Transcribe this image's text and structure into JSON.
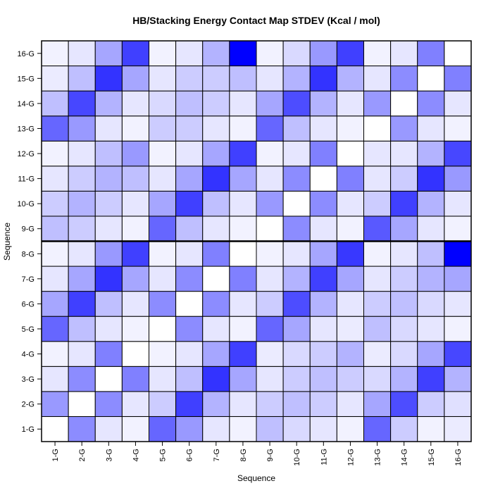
{
  "chart_data": {
    "type": "heatmap",
    "title": "HB/Stacking Energy Contact Map STDEV (Kcal / mol)",
    "xlabel": "Sequence",
    "ylabel": "Sequence",
    "x_categories": [
      "1-G",
      "2-G",
      "3-G",
      "4-G",
      "5-G",
      "6-G",
      "7-G",
      "8-G",
      "9-G",
      "10-G",
      "11-G",
      "12-G",
      "13-G",
      "14-G",
      "15-G",
      "16-G"
    ],
    "y_categories": [
      "1-G",
      "2-G",
      "3-G",
      "4-G",
      "5-G",
      "6-G",
      "7-G",
      "8-G",
      "9-G",
      "10-G",
      "11-G",
      "12-G",
      "13-G",
      "14-G",
      "15-G",
      "16-G"
    ],
    "color_low": "#ffffff",
    "color_high": "#0000ff",
    "divider_after_row": "8-G",
    "values": [
      [
        0.0,
        0.45,
        0.1,
        0.05,
        0.6,
        0.4,
        0.1,
        0.05,
        0.25,
        0.15,
        0.1,
        0.05,
        0.6,
        0.2,
        0.05,
        0.08
      ],
      [
        0.4,
        0.0,
        0.45,
        0.1,
        0.2,
        0.75,
        0.3,
        0.1,
        0.2,
        0.25,
        0.2,
        0.1,
        0.35,
        0.7,
        0.2,
        0.12
      ],
      [
        0.1,
        0.45,
        0.0,
        0.5,
        0.1,
        0.25,
        0.8,
        0.35,
        0.1,
        0.2,
        0.25,
        0.2,
        0.15,
        0.3,
        0.75,
        0.3
      ],
      [
        0.05,
        0.1,
        0.5,
        0.0,
        0.05,
        0.1,
        0.35,
        0.75,
        0.08,
        0.15,
        0.2,
        0.3,
        0.08,
        0.15,
        0.35,
        0.72
      ],
      [
        0.6,
        0.25,
        0.1,
        0.05,
        0.0,
        0.45,
        0.1,
        0.05,
        0.6,
        0.35,
        0.1,
        0.08,
        0.25,
        0.15,
        0.1,
        0.05
      ],
      [
        0.35,
        0.75,
        0.25,
        0.1,
        0.45,
        0.0,
        0.45,
        0.1,
        0.2,
        0.7,
        0.3,
        0.1,
        0.2,
        0.25,
        0.15,
        0.1
      ],
      [
        0.1,
        0.35,
        0.8,
        0.35,
        0.1,
        0.45,
        0.0,
        0.5,
        0.1,
        0.3,
        0.75,
        0.35,
        0.1,
        0.2,
        0.3,
        0.35
      ],
      [
        0.05,
        0.1,
        0.4,
        0.75,
        0.05,
        0.1,
        0.5,
        0.0,
        0.05,
        0.1,
        0.35,
        0.78,
        0.05,
        0.1,
        0.25,
        1.0
      ],
      [
        0.25,
        0.2,
        0.1,
        0.05,
        0.6,
        0.25,
        0.1,
        0.05,
        0.0,
        0.45,
        0.1,
        0.05,
        0.65,
        0.35,
        0.1,
        0.05
      ],
      [
        0.2,
        0.3,
        0.2,
        0.1,
        0.35,
        0.75,
        0.25,
        0.1,
        0.4,
        0.0,
        0.45,
        0.1,
        0.2,
        0.75,
        0.3,
        0.1
      ],
      [
        0.1,
        0.2,
        0.3,
        0.25,
        0.1,
        0.35,
        0.8,
        0.35,
        0.1,
        0.45,
        0.0,
        0.5,
        0.1,
        0.2,
        0.8,
        0.4
      ],
      [
        0.05,
        0.1,
        0.25,
        0.4,
        0.05,
        0.1,
        0.35,
        0.75,
        0.05,
        0.1,
        0.5,
        0.0,
        0.1,
        0.1,
        0.3,
        0.72
      ],
      [
        0.6,
        0.4,
        0.1,
        0.05,
        0.2,
        0.2,
        0.1,
        0.05,
        0.6,
        0.25,
        0.1,
        0.05,
        0.0,
        0.4,
        0.1,
        0.05
      ],
      [
        0.25,
        0.72,
        0.3,
        0.1,
        0.15,
        0.25,
        0.2,
        0.1,
        0.35,
        0.7,
        0.3,
        0.1,
        0.4,
        0.0,
        0.45,
        0.1
      ],
      [
        0.08,
        0.25,
        0.8,
        0.35,
        0.1,
        0.2,
        0.2,
        0.25,
        0.1,
        0.3,
        0.8,
        0.3,
        0.1,
        0.45,
        0.0,
        0.5
      ],
      [
        0.05,
        0.1,
        0.35,
        0.75,
        0.05,
        0.1,
        0.3,
        1.0,
        0.05,
        0.15,
        0.4,
        0.75,
        0.05,
        0.1,
        0.5,
        0.0
      ]
    ]
  }
}
